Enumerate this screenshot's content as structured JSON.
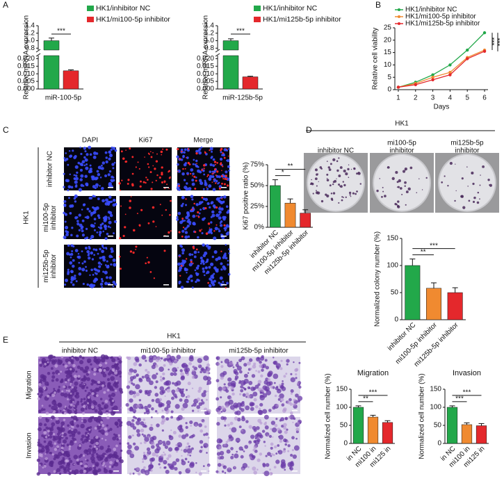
{
  "figure": {
    "panels": [
      "A",
      "B",
      "C",
      "D",
      "E"
    ],
    "C": {
      "columns": [
        "DAPI",
        "Ki67",
        "Merge"
      ],
      "group": "HK1",
      "rows": [
        [
          "inhibitor NC"
        ],
        [
          "mi100-5p",
          "inhibitor"
        ],
        [
          "mi125b-5p",
          "inhibitor"
        ]
      ]
    },
    "D": {
      "group": "HK1",
      "columns": [
        [
          "inhibitor NC"
        ],
        [
          "mi100-5p",
          "inhibitor"
        ],
        [
          "mi125b-5p",
          "inhibitor"
        ]
      ]
    },
    "E": {
      "group": "HK1",
      "columns": [
        "inhibitor NC",
        "mi100-5p inhibitor",
        "mi125b-5p inhibitor"
      ],
      "rows": [
        "Migration",
        "Invasion"
      ]
    }
  },
  "chart_data": [
    {
      "type": "bar",
      "ylabel": "Relative miRNA expression",
      "categories": [
        "miR-100-5p"
      ],
      "series": [
        {
          "name": "HK1/inhibitor NC",
          "color": "#22a84a",
          "values": [
            1.0
          ],
          "errors": [
            0.07
          ]
        },
        {
          "name": "HK1/mi100-5p inhibitor",
          "color": "#e4282c",
          "values": [
            0.012
          ],
          "errors": [
            0.0006
          ]
        }
      ],
      "segments": [
        {
          "ylim": [
            0,
            0.022
          ],
          "yticks": [
            {
              "value": 0,
              "label": "0.000"
            },
            {
              "value": 0.005,
              "label": "0.005"
            },
            {
              "value": 0.01,
              "label": "0.010"
            },
            {
              "value": 0.015,
              "label": "0.015"
            },
            {
              "value": 0.02,
              "label": "0.020"
            }
          ]
        },
        {
          "ylim": [
            0.75,
            1.4
          ],
          "yticks": [
            0.8,
            {
              "value": 1,
              "label": "1.0"
            },
            1.2,
            1.4
          ]
        }
      ],
      "annotations": [
        "***"
      ]
    },
    {
      "type": "bar",
      "ylabel": "Relative miRNA expression",
      "categories": [
        "miR-125b-5p"
      ],
      "series": [
        {
          "name": "HK1/inhibitor NC",
          "color": "#22a84a",
          "values": [
            1.0
          ],
          "errors": [
            0.05
          ]
        },
        {
          "name": "HK1/mi125b-5p inhibitor",
          "color": "#e4282c",
          "values": [
            0.008
          ],
          "errors": [
            0.0004
          ]
        }
      ],
      "segments": [
        {
          "ylim": [
            0,
            0.022
          ],
          "yticks": [
            {
              "value": 0,
              "label": "0.000"
            },
            {
              "value": 0.005,
              "label": "0.005"
            },
            {
              "value": 0.01,
              "label": "0.010"
            },
            {
              "value": 0.015,
              "label": "0.015"
            },
            {
              "value": 0.02,
              "label": "0.020"
            }
          ]
        },
        {
          "ylim": [
            0.75,
            1.4
          ],
          "yticks": [
            0.8,
            {
              "value": 1,
              "label": "1.0"
            },
            1.2,
            1.4
          ]
        }
      ],
      "annotations": [
        "***"
      ]
    },
    {
      "type": "line",
      "xlabel": "Days",
      "ylabel": "Relative cell viability",
      "x": [
        1,
        2,
        3,
        4,
        5,
        6
      ],
      "xlim": [
        0.8,
        6.2
      ],
      "xticks": [
        1,
        2,
        3,
        4,
        5,
        6
      ],
      "ylim": [
        0,
        25
      ],
      "yticks": [
        0,
        5,
        10,
        15,
        20,
        25
      ],
      "series": [
        {
          "name": "HK1/inhibitor NC",
          "color": "#22a84a",
          "values": [
            1,
            3,
            6,
            10,
            16,
            23
          ]
        },
        {
          "name": "HK1/mi100-5p inhibitor",
          "color": "#f08a30",
          "values": [
            1,
            2.5,
            5,
            7,
            13,
            16
          ]
        },
        {
          "name": "HK1/mi125b-5p inhibitor",
          "color": "#e4282c",
          "values": [
            1,
            2,
            4,
            6,
            12.5,
            15.5
          ]
        }
      ],
      "annotations": [
        "***",
        "***"
      ]
    },
    {
      "type": "bar",
      "ylabel": "Ki67 positive ratio (%)",
      "categories": [
        "inhibitor NC",
        "mi100-5p inhibitor",
        "mi125b-5p inhibitor"
      ],
      "values": [
        50,
        29,
        17
      ],
      "errors": [
        7,
        5,
        4
      ],
      "colors": [
        "#22a84a",
        "#f08a30",
        "#e4282c"
      ],
      "ylim": [
        0,
        75
      ],
      "yticks": [
        {
          "value": 0,
          "label": "0%"
        },
        {
          "value": 25,
          "label": "25%"
        },
        {
          "value": 50,
          "label": "50%"
        },
        {
          "value": 75,
          "label": "75%"
        }
      ],
      "annotations": [
        "*",
        "**"
      ]
    },
    {
      "type": "bar",
      "ylabel": "Normalized colony number (%)",
      "categories": [
        "inhibitor NC",
        "mi100-5p inhibitor",
        "mi125b-5p inhibitor"
      ],
      "values": [
        100,
        58,
        50
      ],
      "errors": [
        12,
        10,
        9
      ],
      "colors": [
        "#22a84a",
        "#f08a30",
        "#e4282c"
      ],
      "ylim": [
        0,
        150
      ],
      "yticks": [
        0,
        50,
        100,
        150
      ],
      "annotations": [
        "**",
        "***"
      ]
    },
    {
      "type": "bar",
      "title": "Migration",
      "ylabel": "Normalized cell number (%)",
      "categories": [
        "in NC",
        "mi100 in",
        "mi125 in"
      ],
      "values": [
        100,
        73,
        58
      ],
      "errors": [
        4,
        5,
        5
      ],
      "colors": [
        "#22a84a",
        "#f08a30",
        "#e4282c"
      ],
      "ylim": [
        0,
        150
      ],
      "yticks": [
        0,
        50,
        100,
        150
      ],
      "annotations": [
        "**",
        "***"
      ]
    },
    {
      "type": "bar",
      "title": "Invasion",
      "ylabel": "Normalized cell number (%)",
      "categories": [
        "in NC",
        "mi100 in",
        "mi125 in"
      ],
      "values": [
        100,
        52,
        49
      ],
      "errors": [
        4,
        5,
        6
      ],
      "colors": [
        "#22a84a",
        "#f08a30",
        "#e4282c"
      ],
      "ylim": [
        0,
        150
      ],
      "yticks": [
        0,
        50,
        100,
        150
      ],
      "annotations": [
        "***",
        "***"
      ]
    }
  ]
}
